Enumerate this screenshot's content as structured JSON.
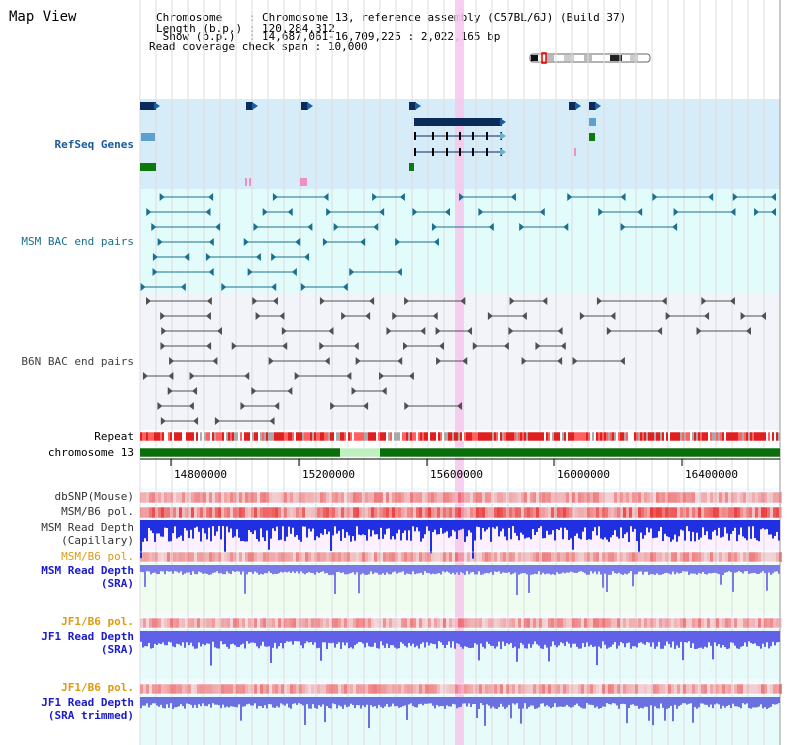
{
  "view_title": "Map View",
  "header": {
    "lines": [
      {
        "key": "Chromosome    ",
        "value": "Chromosome 13, reference assembly (C57BL/6J) (Build 37)"
      },
      {
        "key": "Length (b.p.) ",
        "value": "120,284,312"
      },
      {
        "key": " Show (b.p.)  ",
        "value": "14,687,061-16,709,225 : 2,022,165 bp"
      },
      {
        "key": "Read coverage check span",
        "value": "10,000"
      }
    ]
  },
  "tracks": {
    "refseq": {
      "label": "RefSeq Genes",
      "color": "#1a5a8c"
    },
    "msm_bac": {
      "label": "MSM BAC end pairs",
      "color": "#1a7090"
    },
    "b6n_bac": {
      "label": "B6N BAC end pairs",
      "color": "#404040"
    },
    "repeat": {
      "label": "Repeat"
    },
    "chromosome": {
      "label": "chromosome 13"
    },
    "dbsnp": {
      "label": "dbSNP(Mouse)"
    },
    "msm_b6_pol_1": {
      "label": "MSM/B6 pol."
    },
    "msm_depth_cap": {
      "label1": "MSM Read Depth",
      "label2": "(Capillary)"
    },
    "msm_b6_pol_2": {
      "label": "MSM/B6 pol."
    },
    "msm_depth_sra": {
      "label1": "MSM Read Depth",
      "label2": "(SRA)"
    },
    "jf1_b6_pol_1": {
      "label": "JF1/B6 pol."
    },
    "jf1_depth_sra": {
      "label1": "JF1 Read Depth",
      "label2": "(SRA)"
    },
    "jf1_b6_pol_2": {
      "label": "JF1/B6 pol."
    },
    "jf1_depth_trim": {
      "label1": "JF1 Read Depth",
      "label2": "(SRA trimmed)"
    }
  },
  "axis": {
    "ticks": [
      {
        "value": 14800000,
        "label": "14800000"
      },
      {
        "value": 15200000,
        "label": "15200000"
      },
      {
        "value": 15600000,
        "label": "15600000"
      },
      {
        "value": 16000000,
        "label": "16000000"
      },
      {
        "value": 16400000,
        "label": "16400000"
      }
    ],
    "range": [
      14687061,
      16709225
    ]
  },
  "colors": {
    "refseq_bg": "#d6ecf8",
    "msm_bg": "#e2fbfb",
    "b6n_bg": "#f2f4fa",
    "highlight": "#f6c8ec",
    "label_gray": "#333333",
    "label_teal": "#1a6e8c",
    "label_orange": "#e09a10",
    "label_blue": "#1a1acc",
    "chrom_green": "#0a6e0a"
  }
}
